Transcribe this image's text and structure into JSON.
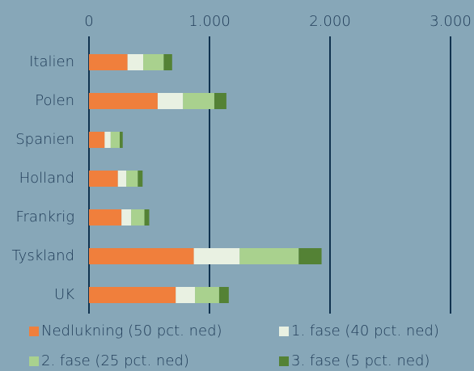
{
  "chart_data": {
    "type": "stacked_barh",
    "categories": [
      "Italien",
      "Polen",
      "Spanien",
      "Holland",
      "Frankrig",
      "Tyskland",
      "UK"
    ],
    "series": [
      {
        "name": "Nedlukning (50 pct. ned)",
        "color": "#f07f3c",
        "values": [
          320,
          570,
          130,
          240,
          270,
          870,
          720
        ]
      },
      {
        "name": "1. fase (40 pct. ned)",
        "color": "#e9f1e2",
        "values": [
          130,
          210,
          50,
          70,
          80,
          380,
          160
        ]
      },
      {
        "name": "2. fase (25 pct. ned)",
        "color": "#a9d18e",
        "values": [
          170,
          260,
          75,
          95,
          110,
          490,
          200
        ]
      },
      {
        "name": "3. fase (5 pct. ned)",
        "color": "#548235",
        "values": [
          70,
          100,
          25,
          40,
          40,
          190,
          80
        ]
      }
    ],
    "xlim": [
      0,
      3000
    ],
    "xticks": [
      0,
      {
        "value": 1000,
        "label": "1.000"
      },
      {
        "value": 2000,
        "label": "2.000"
      },
      {
        "value": 3000,
        "label": "3.000"
      }
    ],
    "grid": true
  }
}
